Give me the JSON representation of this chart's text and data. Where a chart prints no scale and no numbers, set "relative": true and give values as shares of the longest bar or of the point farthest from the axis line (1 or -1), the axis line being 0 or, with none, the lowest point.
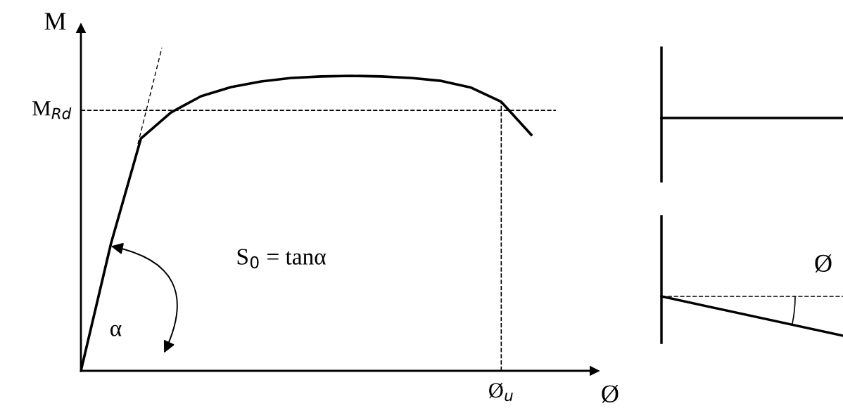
{
  "chart_data": {
    "type": "line",
    "relative": true,
    "xlabel": "Ø",
    "ylabel": "M",
    "categories": [
      null,
      null,
      null,
      null,
      null,
      null,
      null,
      null,
      null,
      null,
      null,
      null,
      null,
      null,
      null,
      null
    ],
    "series": [
      {
        "values": [
          0,
          0.431,
          0.788,
          0.876,
          0.931,
          0.962,
          0.981,
          0.993,
          0.998,
          1,
          0.998,
          0.993,
          0.983,
          0.96,
          0.912,
          0.8
        ],
        "color": "#000000"
      }
    ],
    "ref_lines": [
      {
        "axis": "y",
        "value": 0.883,
        "label": "M$_{Rd}$",
        "color": "#000000",
        "line_style": "dashed"
      }
    ],
    "annotations": [
      "S$_{0}$ = tanα",
      "α",
      "Ø",
      "Ø$_{u}$"
    ]
  }
}
